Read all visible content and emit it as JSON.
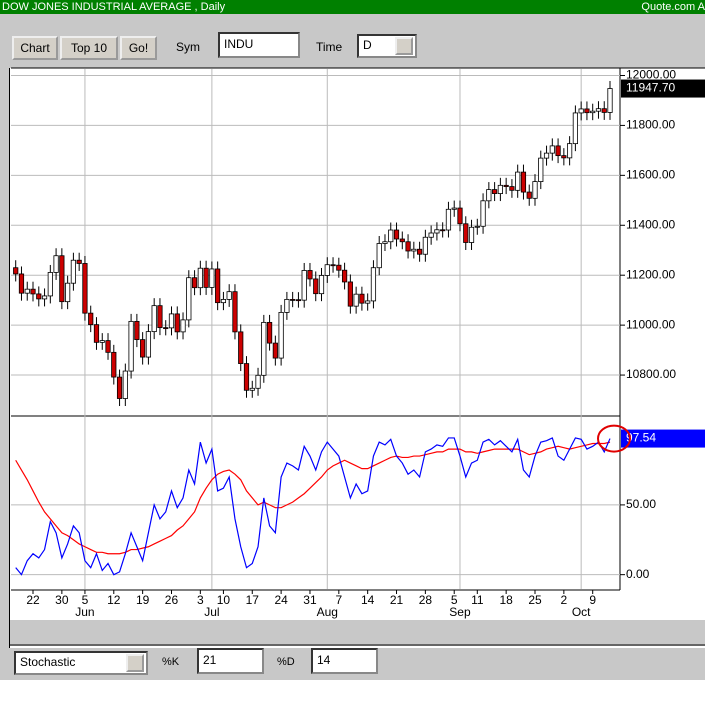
{
  "header": {
    "title": "DOW JONES INDUSTRIAL AVERAGE , Daily",
    "source": "Quote.com A"
  },
  "toolbar": {
    "buttons": [
      "Chart",
      "Top 10",
      "Go!"
    ],
    "sym_label": "Sym",
    "sym_value": "INDU",
    "time_label": "Time",
    "time_value": "D"
  },
  "indicator_bar": {
    "indicator": "Stochastic",
    "k_label": "%K",
    "k_value": "21",
    "d_label": "%D",
    "d_value": "14"
  },
  "chart_data": [
    {
      "type": "candlestick",
      "up_color": "#ffffff",
      "down_color": "#cc0000",
      "grid": true,
      "ylim": [
        10640,
        12030
      ],
      "yticks": [
        {
          "value": 10800,
          "label": "10800.00"
        },
        {
          "value": 11000,
          "label": "11000.00"
        },
        {
          "value": 11200,
          "label": "11200.00"
        },
        {
          "value": 11400,
          "label": "11400.00"
        },
        {
          "value": 11600,
          "label": "11600.00"
        },
        {
          "value": 11800,
          "label": "11800.00"
        },
        {
          "value": 12000,
          "label": "12000.00"
        }
      ],
      "open": [
        11230,
        11205,
        11128,
        11144,
        11125,
        11105,
        11117,
        11211,
        11278,
        11094,
        11168,
        11260,
        11247,
        11048,
        11002,
        10931,
        10938,
        10891,
        10792,
        10706,
        10816,
        11015,
        10942,
        10872,
        10974,
        11078,
        10990,
        10989,
        11045,
        10973,
        11021,
        11190,
        11150,
        11228,
        11151,
        11225,
        11090,
        11103,
        11134,
        10973,
        10846,
        10739,
        10747,
        10799,
        11011,
        10928,
        10868,
        11051,
        11103,
        11102,
        11100,
        11219,
        11185,
        11126,
        11199,
        11242,
        11240,
        11220,
        11173,
        11076,
        11124,
        11088,
        11097,
        11230,
        11327,
        11334,
        11381,
        11345,
        11334,
        11297,
        11304,
        11284,
        11352,
        11369,
        11382,
        11381,
        11464,
        11469,
        11406,
        11331,
        11392,
        11396,
        11498,
        11543,
        11527,
        11560,
        11555,
        11540,
        11613,
        11533,
        11508,
        11575,
        11669,
        11689,
        11718,
        11679,
        11670,
        11727,
        11850,
        11866,
        11851,
        11857,
        11867,
        11852
      ],
      "high": [
        11260,
        11235,
        11174,
        11174,
        11155,
        11147,
        11241,
        11308,
        11308,
        11198,
        11290,
        11290,
        11277,
        11078,
        11032,
        10968,
        10968,
        10921,
        10822,
        10846,
        11045,
        11045,
        10972,
        11004,
        11108,
        11108,
        11020,
        11075,
        11075,
        11051,
        11220,
        11220,
        11258,
        11258,
        11255,
        11255,
        11133,
        11164,
        11164,
        11003,
        10876,
        10777,
        10829,
        11041,
        11041,
        10958,
        11081,
        11133,
        11133,
        11132,
        11249,
        11249,
        11215,
        11229,
        11272,
        11272,
        11270,
        11250,
        11203,
        11154,
        11154,
        11127,
        11260,
        11357,
        11364,
        11411,
        11411,
        11375,
        11364,
        11334,
        11334,
        11382,
        11399,
        11412,
        11412,
        11494,
        11499,
        11499,
        11436,
        11422,
        11426,
        11528,
        11573,
        11573,
        11590,
        11590,
        11585,
        11643,
        11643,
        11563,
        11605,
        11699,
        11719,
        11748,
        11748,
        11709,
        11757,
        11880,
        11896,
        11896,
        11887,
        11897,
        11897,
        11978
      ],
      "low": [
        11175,
        11098,
        11098,
        11095,
        11075,
        11075,
        11087,
        11181,
        11064,
        11064,
        11138,
        11217,
        11018,
        10972,
        10901,
        10901,
        10861,
        10762,
        10676,
        10676,
        10786,
        10912,
        10842,
        10842,
        10944,
        10960,
        10959,
        10959,
        10943,
        10943,
        10991,
        11120,
        11120,
        11121,
        11121,
        11060,
        11060,
        11073,
        10943,
        10816,
        10709,
        10709,
        10717,
        10769,
        10898,
        10838,
        10838,
        11021,
        11072,
        11070,
        11070,
        11155,
        11096,
        11096,
        11169,
        11210,
        11190,
        11143,
        11046,
        11046,
        11058,
        11058,
        11067,
        11200,
        11297,
        11304,
        11315,
        11304,
        11267,
        11267,
        11254,
        11254,
        11322,
        11339,
        11351,
        11351,
        11434,
        11376,
        11301,
        11301,
        11362,
        11366,
        11468,
        11497,
        11497,
        11525,
        11510,
        11510,
        11503,
        11478,
        11478,
        11545,
        11639,
        11659,
        11649,
        11640,
        11640,
        11697,
        11820,
        11821,
        11821,
        11827,
        11822,
        11822
      ],
      "close": [
        11205,
        11128,
        11144,
        11125,
        11105,
        11117,
        11211,
        11278,
        11094,
        11168,
        11260,
        11247,
        11048,
        11002,
        10931,
        10938,
        10891,
        10792,
        10706,
        10816,
        11015,
        10942,
        10872,
        10974,
        11078,
        10990,
        10989,
        11045,
        10973,
        11021,
        11190,
        11150,
        11228,
        11151,
        11225,
        11090,
        11103,
        11134,
        10973,
        10846,
        10739,
        10747,
        10799,
        11011,
        10928,
        10868,
        11051,
        11103,
        11102,
        11100,
        11219,
        11185,
        11126,
        11199,
        11242,
        11240,
        11220,
        11173,
        11076,
        11124,
        11088,
        11097,
        11230,
        11327,
        11334,
        11381,
        11345,
        11334,
        11297,
        11304,
        11284,
        11352,
        11369,
        11382,
        11381,
        11464,
        11469,
        11406,
        11331,
        11392,
        11396,
        11498,
        11543,
        11527,
        11560,
        11555,
        11540,
        11613,
        11533,
        11508,
        11575,
        11669,
        11689,
        11718,
        11679,
        11670,
        11727,
        11850,
        11866,
        11851,
        11857,
        11867,
        11852,
        11947.7
      ],
      "value_labels": [
        null,
        null,
        null,
        null,
        null,
        null,
        null,
        null,
        null,
        null,
        null,
        null,
        null,
        null,
        null,
        null,
        null,
        null,
        null,
        null,
        null,
        null,
        null,
        null,
        null,
        null,
        null,
        null,
        null,
        null,
        null,
        null,
        null,
        null,
        null,
        null,
        null,
        null,
        null,
        null,
        null,
        null,
        null,
        null,
        null,
        null,
        null,
        null,
        null,
        null,
        null,
        null,
        null,
        null,
        null,
        null,
        null,
        null,
        null,
        null,
        null,
        null,
        null,
        null,
        null,
        null,
        null,
        null,
        null,
        null,
        null,
        null,
        null,
        null,
        null,
        null,
        null,
        null,
        null,
        null,
        null,
        null,
        null,
        null,
        null,
        null,
        null,
        null,
        null,
        null,
        null,
        null,
        null,
        null,
        null,
        null,
        null,
        null,
        null,
        null,
        null,
        null,
        null,
        "11947.70"
      ]
    },
    {
      "type": "line",
      "grid": true,
      "ylim": [
        -11,
        113
      ],
      "yticks": [
        {
          "value": 0,
          "label": "0.00"
        },
        {
          "value": 50,
          "label": "50.00"
        }
      ],
      "categories": [
        null,
        null,
        null,
        "22",
        null,
        null,
        null,
        null,
        "30",
        null,
        null,
        null,
        "5",
        null,
        null,
        null,
        null,
        "12",
        null,
        null,
        null,
        null,
        "19",
        null,
        null,
        null,
        null,
        "26",
        null,
        null,
        null,
        null,
        "3",
        null,
        null,
        null,
        "10",
        null,
        null,
        null,
        null,
        "17",
        null,
        null,
        null,
        null,
        "24",
        null,
        null,
        null,
        null,
        "31",
        null,
        null,
        null,
        null,
        "7",
        null,
        null,
        null,
        null,
        "14",
        null,
        null,
        null,
        null,
        "21",
        null,
        null,
        null,
        null,
        "28",
        null,
        null,
        null,
        null,
        "5",
        null,
        null,
        null,
        "11",
        null,
        null,
        null,
        null,
        "18",
        null,
        null,
        null,
        null,
        "25",
        null,
        null,
        null,
        null,
        "2",
        null,
        null,
        null,
        null,
        "9",
        null,
        null,
        null
      ],
      "months": [
        {
          "value": 12,
          "label": "Jun"
        },
        {
          "value": 34,
          "label": "Jul"
        },
        {
          "value": 54,
          "label": "Aug"
        },
        {
          "value": 77,
          "label": "Sep"
        },
        {
          "value": 98,
          "label": "Oct"
        }
      ],
      "series": [
        {
          "color": "#0000ff",
          "values": [
            5,
            0,
            10,
            15,
            12,
            18,
            38,
            30,
            12,
            22,
            35,
            30,
            10,
            5,
            15,
            3,
            8,
            0,
            2,
            15,
            30,
            20,
            10,
            30,
            50,
            40,
            45,
            60,
            48,
            55,
            75,
            65,
            95,
            80,
            90,
            60,
            62,
            70,
            40,
            20,
            5,
            8,
            20,
            55,
            35,
            30,
            70,
            80,
            78,
            75,
            92,
            85,
            75,
            88,
            95,
            90,
            85,
            70,
            55,
            65,
            58,
            60,
            85,
            95,
            93,
            97,
            85,
            80,
            72,
            75,
            70,
            88,
            90,
            93,
            92,
            98,
            98,
            85,
            70,
            80,
            82,
            95,
            97,
            93,
            96,
            92,
            88,
            97,
            75,
            70,
            85,
            95,
            96,
            98,
            85,
            82,
            90,
            98,
            97,
            90,
            92,
            95,
            88,
            97.54
          ]
        },
        {
          "color": "#ff0000",
          "values": [
            82,
            75,
            68,
            60,
            52,
            45,
            40,
            35,
            30,
            28,
            25,
            22,
            20,
            18,
            16,
            16,
            15,
            15,
            15,
            16,
            18,
            18,
            19,
            20,
            22,
            24,
            26,
            28,
            32,
            35,
            40,
            45,
            55,
            62,
            68,
            72,
            74,
            75,
            72,
            68,
            60,
            55,
            50,
            52,
            50,
            48,
            48,
            50,
            52,
            55,
            58,
            62,
            66,
            70,
            75,
            78,
            80,
            82,
            80,
            78,
            76,
            76,
            78,
            80,
            82,
            84,
            85,
            84,
            84,
            85,
            85,
            86,
            87,
            88,
            88,
            90,
            90,
            90,
            88,
            88,
            87,
            88,
            89,
            90,
            90,
            90,
            90,
            90,
            88,
            86,
            87,
            88,
            90,
            91,
            92,
            91,
            90,
            91,
            92,
            93,
            94,
            94,
            94,
            95
          ]
        }
      ]
    }
  ]
}
